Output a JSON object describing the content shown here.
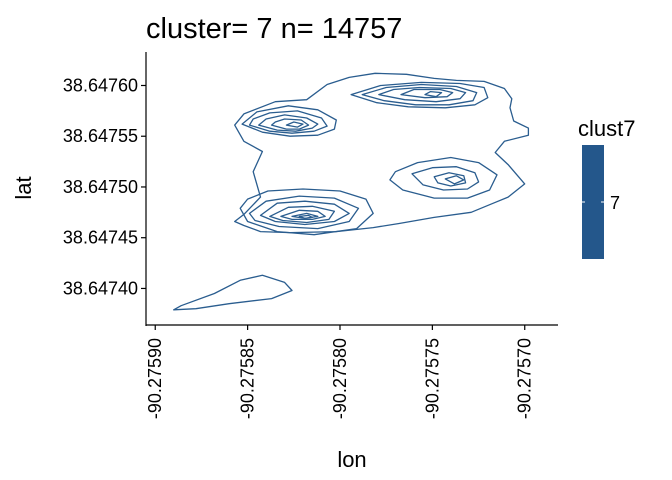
{
  "chart_data": {
    "type": "contour",
    "title": "cluster= 7 n= 14757",
    "xlabel": "lon",
    "ylabel": "lat",
    "xlim": [
      -90.275905,
      -90.275682
    ],
    "ylim": [
      38.647363,
      38.647633
    ],
    "x_ticks": [
      -90.2759,
      -90.27585,
      -90.2758,
      -90.27575,
      -90.2757
    ],
    "x_tick_labels": [
      "-90.27590",
      "-90.27585",
      "-90.27580",
      "-90.27575",
      "-90.27570"
    ],
    "y_ticks": [
      38.6474,
      38.64745,
      38.6475,
      38.64755,
      38.6476
    ],
    "y_tick_labels": [
      "38.64740",
      "38.64745",
      "38.64750",
      "38.64755",
      "38.64760"
    ],
    "line_color": "#2a5d8f",
    "legend": {
      "title": "clust7",
      "entries": [
        {
          "label": "7",
          "color": "#24578b"
        }
      ],
      "position": "right"
    },
    "contours": [
      {
        "name": "outer-main",
        "points": [
          [
            -90.275857,
            38.647466
          ],
          [
            -90.275852,
            38.647473
          ],
          [
            -90.275843,
            38.64749
          ],
          [
            -90.275847,
            38.647515
          ],
          [
            -90.275842,
            38.647535
          ],
          [
            -90.275852,
            38.647545
          ],
          [
            -90.275857,
            38.647561
          ],
          [
            -90.275852,
            38.647572
          ],
          [
            -90.275835,
            38.647584
          ],
          [
            -90.275818,
            38.647586
          ],
          [
            -90.275807,
            38.647601
          ],
          [
            -90.275795,
            38.647608
          ],
          [
            -90.275781,
            38.647612
          ],
          [
            -90.275764,
            38.647611
          ],
          [
            -90.275749,
            38.647607
          ],
          [
            -90.275737,
            38.647605
          ],
          [
            -90.275722,
            38.647604
          ],
          [
            -90.275711,
            38.647597
          ],
          [
            -90.275707,
            38.647587
          ],
          [
            -90.275708,
            38.647578
          ],
          [
            -90.275706,
            38.647565
          ],
          [
            -90.275698,
            38.647558
          ],
          [
            -90.275698,
            38.647551
          ],
          [
            -90.275711,
            38.647545
          ],
          [
            -90.275716,
            38.647534
          ],
          [
            -90.275709,
            38.647522
          ],
          [
            -90.2757,
            38.647503
          ],
          [
            -90.275709,
            38.64749
          ],
          [
            -90.275717,
            38.647484
          ],
          [
            -90.275729,
            38.647475
          ],
          [
            -90.275749,
            38.64747
          ],
          [
            -90.275768,
            38.647464
          ],
          [
            -90.275782,
            38.64746
          ],
          [
            -90.275802,
            38.647456
          ],
          [
            -90.275827,
            38.647455
          ],
          [
            -90.275843,
            38.647456
          ],
          [
            -90.275852,
            38.647462
          ]
        ]
      },
      {
        "name": "outer-sw",
        "points": [
          [
            -90.27589,
            38.647379
          ],
          [
            -90.275886,
            38.647383
          ],
          [
            -90.275868,
            38.647395
          ],
          [
            -90.275854,
            38.647408
          ],
          [
            -90.275842,
            38.647413
          ],
          [
            -90.27583,
            38.647406
          ],
          [
            -90.275826,
            38.647398
          ],
          [
            -90.275837,
            38.64739
          ],
          [
            -90.27586,
            38.647385
          ],
          [
            -90.275878,
            38.64738
          ]
        ]
      },
      {
        "name": "nw-1",
        "points": [
          [
            -90.275853,
            38.647562
          ],
          [
            -90.275842,
            38.647554
          ],
          [
            -90.275827,
            38.64755
          ],
          [
            -90.275812,
            38.647551
          ],
          [
            -90.275803,
            38.647557
          ],
          [
            -90.275802,
            38.647566
          ],
          [
            -90.275812,
            38.647576
          ],
          [
            -90.275828,
            38.64758
          ],
          [
            -90.275845,
            38.647574
          ]
        ]
      },
      {
        "name": "nw-2",
        "points": [
          [
            -90.275849,
            38.647561
          ],
          [
            -90.275838,
            38.647555
          ],
          [
            -90.275826,
            38.647553
          ],
          [
            -90.275814,
            38.647555
          ],
          [
            -90.275807,
            38.64756
          ],
          [
            -90.27581,
            38.647568
          ],
          [
            -90.275823,
            38.647575
          ],
          [
            -90.275838,
            38.647573
          ],
          [
            -90.275847,
            38.647567
          ]
        ]
      },
      {
        "name": "nw-3",
        "points": [
          [
            -90.275844,
            38.647561
          ],
          [
            -90.275834,
            38.647556
          ],
          [
            -90.275824,
            38.647555
          ],
          [
            -90.275815,
            38.647558
          ],
          [
            -90.275812,
            38.647562
          ],
          [
            -90.275818,
            38.647568
          ],
          [
            -90.27583,
            38.647571
          ],
          [
            -90.27584,
            38.647567
          ]
        ]
      },
      {
        "name": "nw-4",
        "points": [
          [
            -90.275837,
            38.647561
          ],
          [
            -90.275829,
            38.647557
          ],
          [
            -90.275822,
            38.647557
          ],
          [
            -90.275817,
            38.647561
          ],
          [
            -90.275821,
            38.647566
          ],
          [
            -90.27583,
            38.647567
          ],
          [
            -90.275835,
            38.647564
          ]
        ]
      },
      {
        "name": "nw-5",
        "points": [
          [
            -90.275829,
            38.647561
          ],
          [
            -90.275823,
            38.647559
          ],
          [
            -90.27582,
            38.647562
          ],
          [
            -90.275825,
            38.647564
          ]
        ]
      },
      {
        "name": "ne-1",
        "points": [
          [
            -90.275794,
            38.647591
          ],
          [
            -90.27578,
            38.647583
          ],
          [
            -90.275763,
            38.647579
          ],
          [
            -90.275743,
            38.647578
          ],
          [
            -90.275727,
            38.647581
          ],
          [
            -90.27572,
            38.647588
          ],
          [
            -90.275722,
            38.647598
          ],
          [
            -90.275735,
            38.647602
          ],
          [
            -90.275756,
            38.647603
          ],
          [
            -90.275778,
            38.6476
          ]
        ]
      },
      {
        "name": "ne-2",
        "points": [
          [
            -90.275788,
            38.647591
          ],
          [
            -90.275776,
            38.647585
          ],
          [
            -90.275759,
            38.647581
          ],
          [
            -90.275741,
            38.647581
          ],
          [
            -90.275728,
            38.647585
          ],
          [
            -90.275726,
            38.647593
          ],
          [
            -90.275737,
            38.647599
          ],
          [
            -90.275756,
            38.647601
          ],
          [
            -90.275775,
            38.647598
          ]
        ]
      },
      {
        "name": "ne-3",
        "points": [
          [
            -90.275779,
            38.647591
          ],
          [
            -90.275765,
            38.647586
          ],
          [
            -90.275748,
            38.647584
          ],
          [
            -90.275735,
            38.647587
          ],
          [
            -90.275732,
            38.647593
          ],
          [
            -90.27574,
            38.647597
          ],
          [
            -90.275757,
            38.647598
          ],
          [
            -90.275771,
            38.647596
          ]
        ]
      },
      {
        "name": "ne-4",
        "points": [
          [
            -90.275767,
            38.647591
          ],
          [
            -90.275754,
            38.647588
          ],
          [
            -90.275742,
            38.647589
          ],
          [
            -90.275739,
            38.647593
          ],
          [
            -90.275746,
            38.647596
          ],
          [
            -90.27576,
            38.647596
          ]
        ]
      },
      {
        "name": "ne-5",
        "points": [
          [
            -90.275754,
            38.647591
          ],
          [
            -90.275748,
            38.647589
          ],
          [
            -90.275745,
            38.647593
          ],
          [
            -90.275751,
            38.647594
          ]
        ]
      },
      {
        "name": "e-1",
        "points": [
          [
            -90.27577,
            38.647515
          ],
          [
            -90.275758,
            38.647524
          ],
          [
            -90.27574,
            38.647529
          ],
          [
            -90.275725,
            38.647524
          ],
          [
            -90.275715,
            38.647512
          ],
          [
            -90.275719,
            38.647497
          ],
          [
            -90.275731,
            38.647489
          ],
          [
            -90.275749,
            38.647489
          ],
          [
            -90.275766,
            38.647497
          ],
          [
            -90.275773,
            38.647507
          ]
        ]
      },
      {
        "name": "e-2",
        "points": [
          [
            -90.275761,
            38.647513
          ],
          [
            -90.27575,
            38.647519
          ],
          [
            -90.275737,
            38.64752
          ],
          [
            -90.275727,
            38.647514
          ],
          [
            -90.275725,
            38.647505
          ],
          [
            -90.275731,
            38.647498
          ],
          [
            -90.275744,
            38.647497
          ],
          [
            -90.275755,
            38.647502
          ]
        ]
      },
      {
        "name": "e-3",
        "points": [
          [
            -90.275749,
            38.64751
          ],
          [
            -90.275741,
            38.647514
          ],
          [
            -90.275733,
            38.647511
          ],
          [
            -90.275732,
            38.647504
          ],
          [
            -90.27574,
            38.647501
          ],
          [
            -90.275747,
            38.647504
          ]
        ]
      },
      {
        "name": "e-4",
        "points": [
          [
            -90.275743,
            38.647508
          ],
          [
            -90.275737,
            38.647511
          ],
          [
            -90.275733,
            38.647507
          ],
          [
            -90.275738,
            38.647503
          ]
        ]
      },
      {
        "name": "sw-1",
        "points": [
          [
            -90.275854,
            38.647479
          ],
          [
            -90.27585,
            38.647488
          ],
          [
            -90.275839,
            38.647496
          ],
          [
            -90.27582,
            38.647498
          ],
          [
            -90.2758,
            38.647496
          ],
          [
            -90.275786,
            38.647488
          ],
          [
            -90.275782,
            38.647474
          ],
          [
            -90.275791,
            38.647459
          ],
          [
            -90.275814,
            38.647453
          ],
          [
            -90.275834,
            38.647456
          ],
          [
            -90.27585,
            38.647466
          ]
        ]
      },
      {
        "name": "sw-2",
        "points": [
          [
            -90.275849,
            38.647474
          ],
          [
            -90.27584,
            38.647486
          ],
          [
            -90.275822,
            38.647491
          ],
          [
            -90.275803,
            38.647489
          ],
          [
            -90.27579,
            38.647479
          ],
          [
            -90.275795,
            38.647466
          ],
          [
            -90.275812,
            38.647459
          ],
          [
            -90.275833,
            38.647461
          ],
          [
            -90.275846,
            38.647467
          ]
        ]
      },
      {
        "name": "sw-3",
        "points": [
          [
            -90.275843,
            38.647472
          ],
          [
            -90.275834,
            38.647484
          ],
          [
            -90.275819,
            38.647486
          ],
          [
            -90.275803,
            38.647483
          ],
          [
            -90.275795,
            38.647474
          ],
          [
            -90.275803,
            38.647466
          ],
          [
            -90.275819,
            38.647463
          ],
          [
            -90.275835,
            38.647466
          ]
        ]
      },
      {
        "name": "sw-4",
        "points": [
          [
            -90.275838,
            38.647471
          ],
          [
            -90.275828,
            38.64748
          ],
          [
            -90.275815,
            38.647481
          ],
          [
            -90.275803,
            38.647476
          ],
          [
            -90.275806,
            38.647468
          ],
          [
            -90.275818,
            38.647465
          ],
          [
            -90.275831,
            38.647467
          ]
        ]
      },
      {
        "name": "sw-5",
        "points": [
          [
            -90.275832,
            38.647471
          ],
          [
            -90.275822,
            38.647477
          ],
          [
            -90.275812,
            38.647476
          ],
          [
            -90.275808,
            38.647471
          ],
          [
            -90.275815,
            38.647468
          ],
          [
            -90.275826,
            38.647468
          ]
        ]
      },
      {
        "name": "sw-6",
        "points": [
          [
            -90.275826,
            38.647471
          ],
          [
            -90.275818,
            38.647474
          ],
          [
            -90.275812,
            38.647471
          ],
          [
            -90.275819,
            38.647469
          ]
        ]
      },
      {
        "name": "sw-7",
        "points": [
          [
            -90.275822,
            38.647471
          ],
          [
            -90.275817,
            38.647472
          ],
          [
            -90.275815,
            38.64747
          ],
          [
            -90.275819,
            38.647469
          ]
        ]
      }
    ]
  }
}
